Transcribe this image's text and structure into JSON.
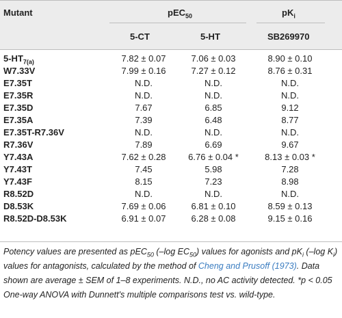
{
  "header": {
    "mutant_label": "Mutant",
    "pec50_label": "pEC",
    "pec50_sub": "50",
    "pki_label": "pK",
    "pki_sub": "i",
    "col_5ct": "5-CT",
    "col_5ht": "5-HT",
    "col_sb": "SB269970"
  },
  "rows": [
    {
      "mutant": "5-HT",
      "mutant_sub": "7(a)",
      "ct": "7.82 ± 0.07",
      "ht": "7.06 ± 0.03",
      "sb": "8.90 ± 0.10"
    },
    {
      "mutant": "W7.33V",
      "ct": "7.99 ± 0.16",
      "ht": "7.27 ± 0.12",
      "sb": "8.76 ± 0.31"
    },
    {
      "mutant": "E7.35T",
      "ct": "N.D.",
      "ht": "N.D.",
      "sb": "N.D."
    },
    {
      "mutant": "E7.35R",
      "ct": "N.D.",
      "ht": "N.D.",
      "sb": "N.D."
    },
    {
      "mutant": "E7.35D",
      "ct": "7.67",
      "ht": "6.85",
      "sb": "9.12"
    },
    {
      "mutant": "E7.35A",
      "ct": "7.39",
      "ht": "6.48",
      "sb": "8.77"
    },
    {
      "mutant": "E7.35T-R7.36V",
      "ct": "N.D.",
      "ht": "N.D.",
      "sb": "N.D."
    },
    {
      "mutant": "R7.36V",
      "ct": "7.89",
      "ht": "6.69",
      "sb": "9.67"
    },
    {
      "mutant": "Y7.43A",
      "ct": "7.62 ± 0.28",
      "ht": "6.76 ± 0.04 *",
      "sb": "8.13 ± 0.03 *"
    },
    {
      "mutant": "Y7.43T",
      "ct": "7.45",
      "ht": "5.98",
      "sb": "7.28"
    },
    {
      "mutant": "Y7.43F",
      "ct": "8.15",
      "ht": "7.23",
      "sb": "8.98"
    },
    {
      "mutant": "R8.52D",
      "ct": "N.D.",
      "ht": "N.D.",
      "sb": "N.D."
    },
    {
      "mutant": "D8.53K",
      "ct": "7.69 ± 0.06",
      "ht": "6.81 ± 0.10",
      "sb": "8.59 ± 0.13"
    },
    {
      "mutant": "R8.52D-D8.53K",
      "ct": "6.91 ± 0.07",
      "ht": "6.28 ± 0.08",
      "sb": "9.15 ± 0.16"
    }
  ],
  "footnote": {
    "part1": "Potency values are presented as pEC",
    "sub1": "50",
    "part2": " (–log EC",
    "sub2": "50",
    "part3": ") values for agonists and pK",
    "sub3": "i",
    "part4": " (–log K",
    "sub4": "i",
    "part5": ") values for antagonists, calculated by the method of ",
    "link": "Cheng and Prusoff (1973)",
    "part6": ". Data shown are average ± SEM of 1–8 experiments. N.D., no AC activity detected. *p < 0.05 One-way ANOVA with Dunnett's multiple comparisons test vs. wild-type."
  }
}
